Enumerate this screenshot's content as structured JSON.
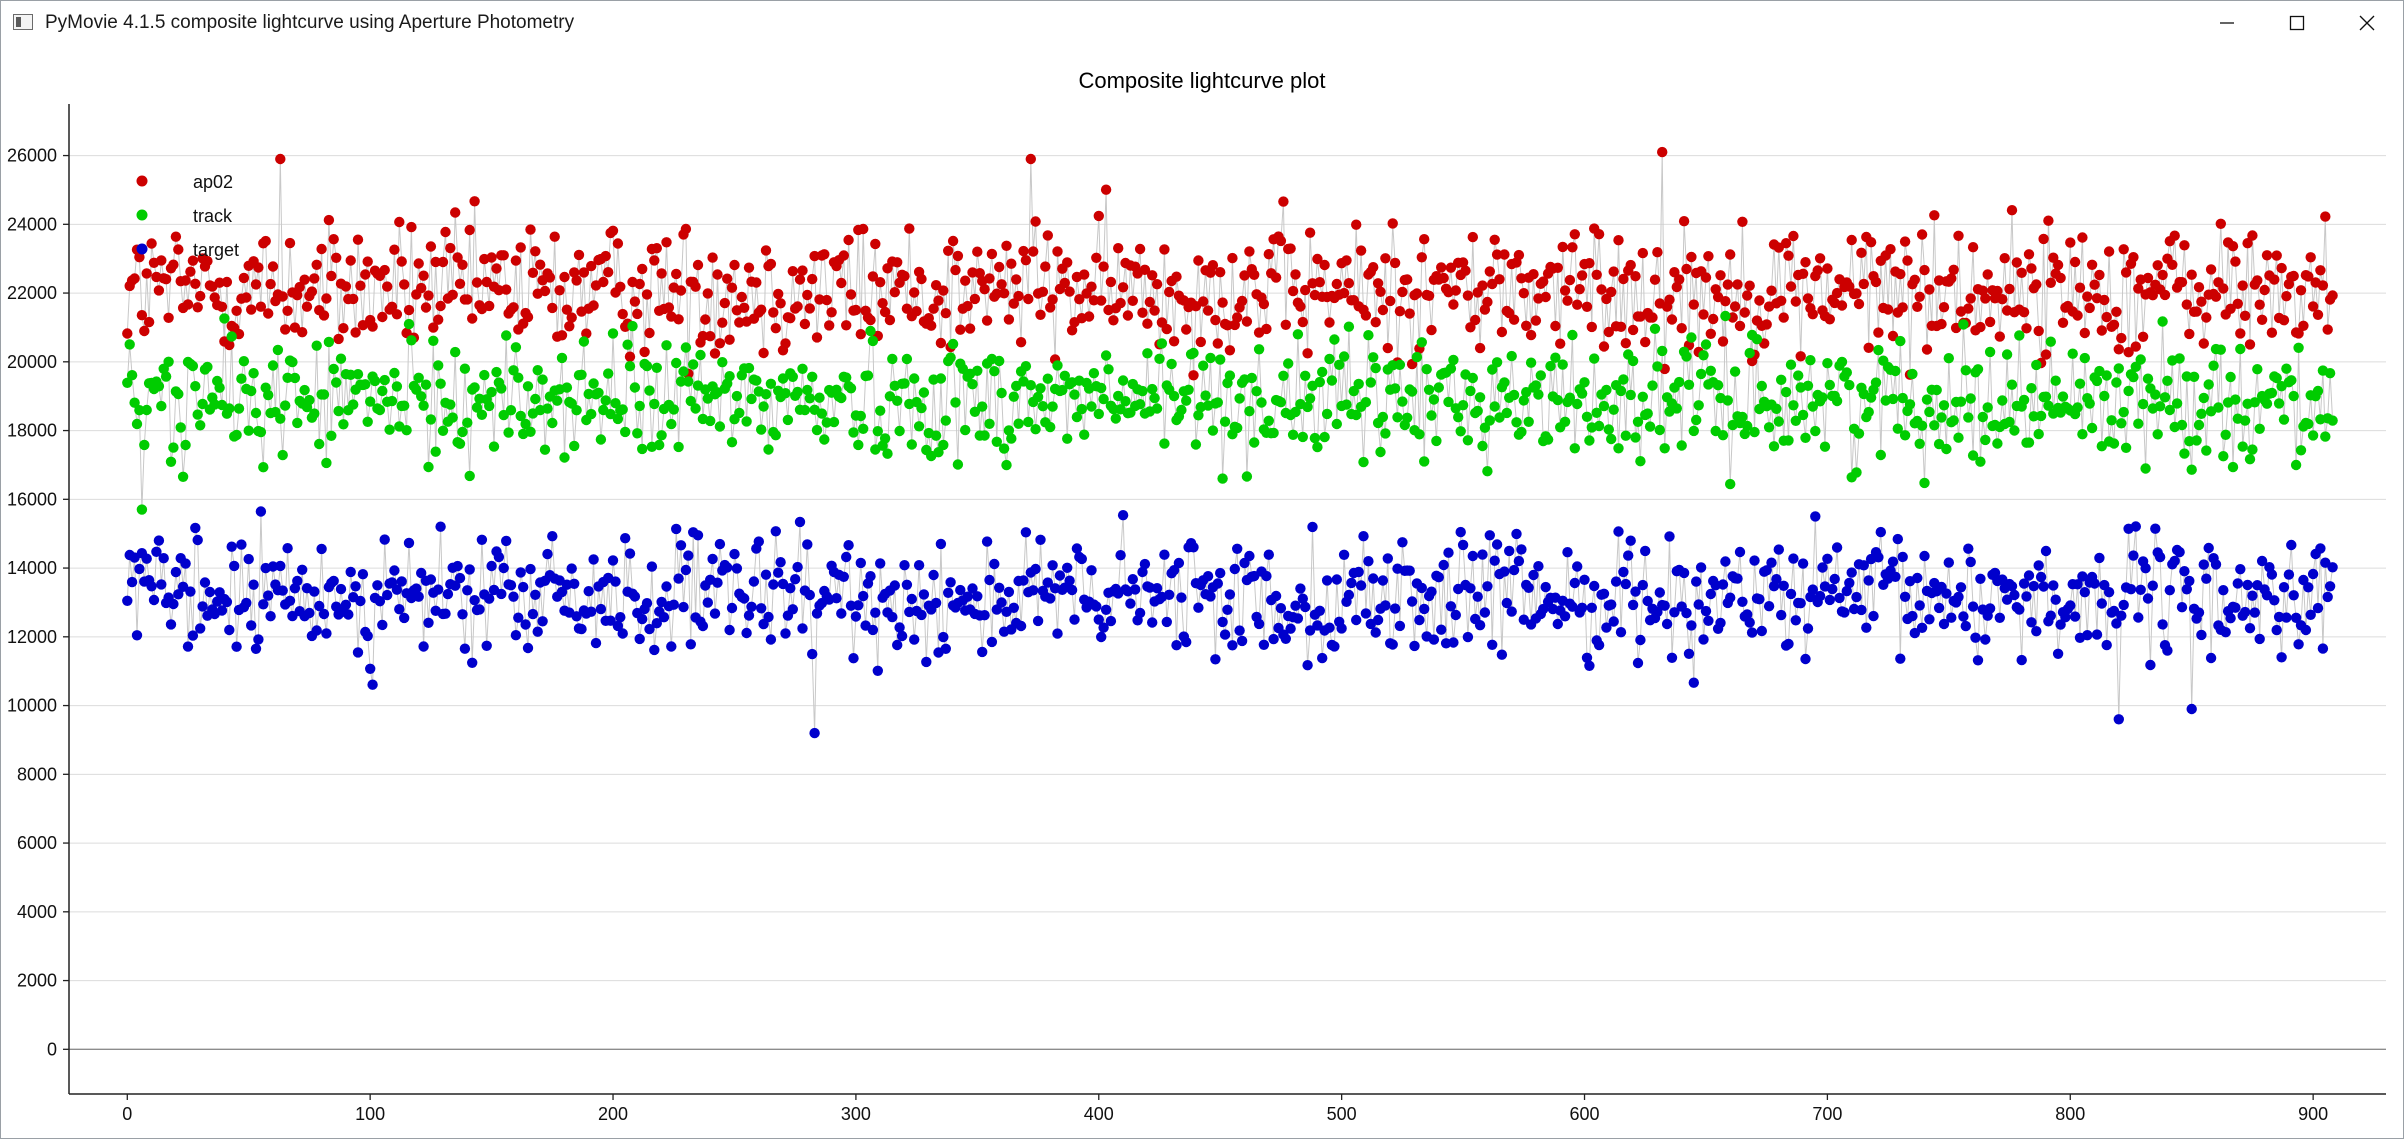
{
  "window": {
    "title": "PyMovie 4.1.5 composite lightcurve using Aperture Photometry",
    "minimize_icon": "minimize-icon",
    "maximize_icon": "maximize-icon",
    "close_icon": "close-icon"
  },
  "chart_data": {
    "type": "scatter",
    "title": "Composite lightcurve plot",
    "xlabel": "",
    "ylabel": "",
    "xlim": [
      -24,
      930
    ],
    "ylim": [
      -1300,
      27500
    ],
    "xticks": [
      0,
      100,
      200,
      300,
      400,
      500,
      600,
      700,
      800,
      900
    ],
    "yticks": [
      0,
      2000,
      4000,
      6000,
      8000,
      10000,
      12000,
      14000,
      16000,
      18000,
      20000,
      22000,
      24000,
      26000
    ],
    "grid": true,
    "connect_points": true,
    "legend_position": "top-left",
    "n_points": 909,
    "series": [
      {
        "name": "ap02",
        "color": "#cc0000",
        "mean": 22100,
        "spread": 1250,
        "min": 16700,
        "max": 26100,
        "drift": 0
      },
      {
        "name": "track",
        "color": "#00cc00",
        "mean": 18900,
        "spread": 1150,
        "min": 15200,
        "max": 22600,
        "drift": 0
      },
      {
        "name": "target",
        "color": "#0000cc",
        "mean": 13150,
        "spread": 1150,
        "min": 9200,
        "max": 16700,
        "drift": 0
      }
    ],
    "highlights": [
      {
        "series": "ap02",
        "x": 372,
        "y": 25900
      },
      {
        "series": "ap02",
        "x": 632,
        "y": 26100
      },
      {
        "series": "ap02",
        "x": 63,
        "y": 25900
      },
      {
        "series": "target",
        "x": 283,
        "y": 9200
      },
      {
        "series": "target",
        "x": 820,
        "y": 9600
      },
      {
        "series": "target",
        "x": 850,
        "y": 9900
      },
      {
        "series": "track",
        "x": 6,
        "y": 15700
      }
    ]
  }
}
